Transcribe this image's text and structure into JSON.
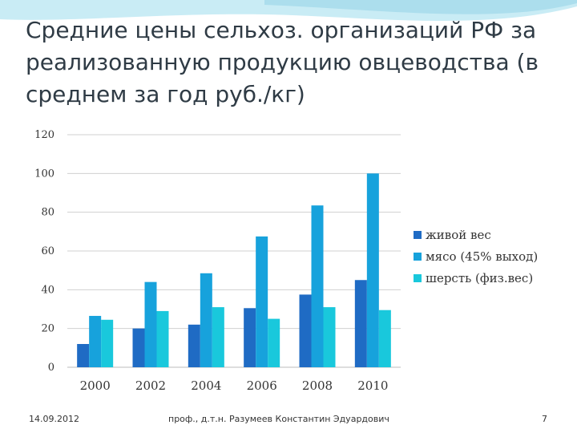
{
  "slide": {
    "title": "Средние цены сельхоз. организаций РФ за реализованную продукцию овцеводства (в среднем за год руб./кг)",
    "footer_date": "14.09.2012",
    "footer_author": "проф., д.т.н. Разумеев Константин Эдуардович",
    "page_number": "7"
  },
  "colors": {
    "series": [
      "#1f6bc4",
      "#17a2dc",
      "#19c8dc"
    ],
    "wave": "#9fd8ea"
  },
  "chart_data": {
    "type": "bar",
    "title": "",
    "xlabel": "",
    "ylabel": "",
    "ylim": [
      0,
      120
    ],
    "yticks": [
      "0",
      "20",
      "40",
      "60",
      "80",
      "100",
      "120"
    ],
    "grid": true,
    "legend_position": "right",
    "categories": [
      "2000",
      "2002",
      "2004",
      "2006",
      "2008",
      "2010"
    ],
    "series": [
      {
        "name": "живой вес",
        "values": [
          12,
          20,
          22,
          30.5,
          37.5,
          45
        ]
      },
      {
        "name": "мясо (45% выход)",
        "values": [
          26.5,
          44,
          48.5,
          67.5,
          83.5,
          100
        ]
      },
      {
        "name": "шерсть (физ.вес)",
        "values": [
          24.5,
          29,
          31,
          25,
          31,
          29.5
        ]
      }
    ]
  }
}
